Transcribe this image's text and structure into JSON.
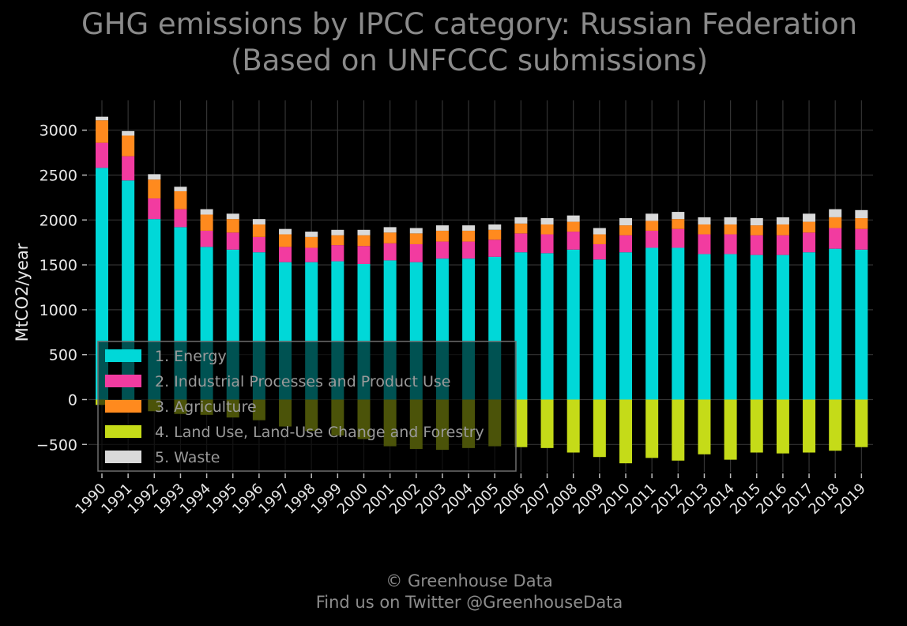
{
  "title": {
    "line1": "GHG emissions by IPCC category: Russian Federation",
    "line2": "(Based on UNFCCC submissions)"
  },
  "footer": {
    "line1": "© Greenhouse Data",
    "line2": "Find us on Twitter @GreenhouseData"
  },
  "chart_data": {
    "type": "bar",
    "stacked": true,
    "ylabel": "MtCO2/year",
    "xlabel": "",
    "ylim": [
      -800,
      3400
    ],
    "yticks": [
      -500,
      0,
      500,
      1000,
      1500,
      2000,
      2500,
      3000
    ],
    "ytick_labels": [
      "−500",
      "0",
      "500",
      "1000",
      "1500",
      "2000",
      "2500",
      "3000"
    ],
    "grid": true,
    "legend_position": "lower-left",
    "categories": [
      "1990",
      "1991",
      "1992",
      "1993",
      "1994",
      "1995",
      "1996",
      "1997",
      "1998",
      "1999",
      "2000",
      "2001",
      "2002",
      "2003",
      "2004",
      "2005",
      "2006",
      "2007",
      "2008",
      "2009",
      "2010",
      "2011",
      "2012",
      "2013",
      "2014",
      "2015",
      "2016",
      "2017",
      "2018",
      "2019"
    ],
    "series": [
      {
        "name": "1. Energy",
        "color": "#00d8d8",
        "values": [
          2580,
          2440,
          2010,
          1920,
          1700,
          1670,
          1640,
          1530,
          1530,
          1540,
          1510,
          1550,
          1530,
          1570,
          1570,
          1590,
          1640,
          1630,
          1670,
          1560,
          1640,
          1690,
          1690,
          1620,
          1620,
          1610,
          1610,
          1640,
          1680,
          1670
        ]
      },
      {
        "name": "2. Industrial Processes and Product Use",
        "color": "#f23ba0",
        "values": [
          280,
          270,
          230,
          200,
          180,
          190,
          170,
          170,
          160,
          180,
          200,
          190,
          200,
          190,
          190,
          190,
          210,
          210,
          200,
          170,
          190,
          190,
          210,
          220,
          220,
          220,
          220,
          220,
          230,
          230
        ]
      },
      {
        "name": "3. Agriculture",
        "color": "#ff8a1e",
        "values": [
          250,
          230,
          210,
          200,
          180,
          150,
          140,
          140,
          120,
          110,
          120,
          120,
          120,
          120,
          120,
          110,
          110,
          110,
          110,
          110,
          110,
          110,
          110,
          110,
          110,
          110,
          120,
          120,
          120,
          120
        ]
      },
      {
        "name": "4. Land Use, Land-Use Change and Forestry",
        "color": "#c5db18",
        "values": [
          -60,
          -90,
          -130,
          -160,
          -170,
          -200,
          -230,
          -300,
          -350,
          -400,
          -440,
          -520,
          -550,
          -560,
          -540,
          -520,
          -530,
          -540,
          -590,
          -640,
          -710,
          -650,
          -680,
          -610,
          -670,
          -590,
          -600,
          -590,
          -570,
          -530
        ]
      },
      {
        "name": "5. Waste",
        "color": "#d9d9d9",
        "values": [
          40,
          50,
          60,
          50,
          60,
          60,
          60,
          60,
          60,
          60,
          60,
          60,
          60,
          60,
          60,
          60,
          70,
          70,
          70,
          70,
          80,
          80,
          80,
          80,
          80,
          80,
          80,
          90,
          90,
          90
        ]
      }
    ]
  }
}
